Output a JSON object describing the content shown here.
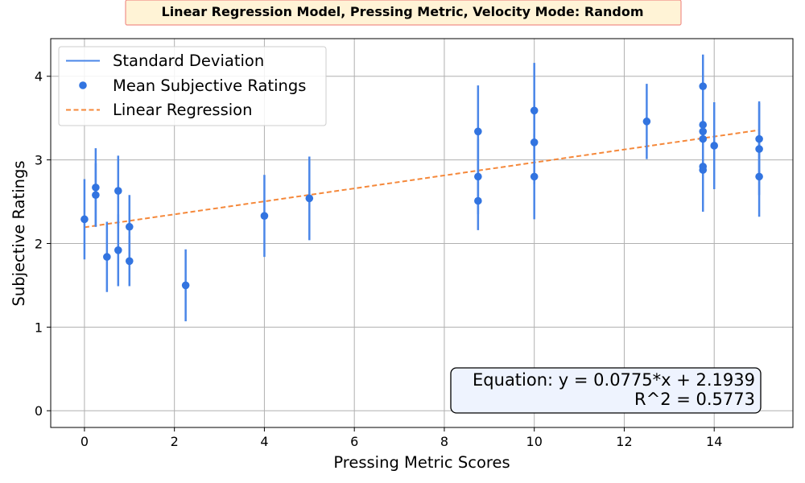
{
  "chart_data": {
    "type": "scatter",
    "title": "Linear Regression Model, Pressing Metric, Velocity Mode: Random",
    "xlabel": "Pressing Metric Scores",
    "ylabel": "Subjective Ratings",
    "xlim": [
      -0.75,
      15.75
    ],
    "ylim": [
      -0.2,
      4.45
    ],
    "xticks": [
      0,
      2,
      4,
      6,
      8,
      10,
      12,
      14
    ],
    "yticks": [
      0,
      1,
      2,
      3,
      4
    ],
    "grid": true,
    "legend_position": "top-left",
    "legend": [
      "Standard Deviation",
      "Mean Subjective Ratings",
      "Linear Regression"
    ],
    "colors": {
      "points": "#3274e0",
      "errorbars": "#4a86e8",
      "regression": "#f5883a",
      "title_bg": "#fff3d6",
      "title_border": "#f0908a",
      "eq_bg": "#eef3fe"
    },
    "series": [
      {
        "name": "Mean Subjective Ratings",
        "points": [
          {
            "x": 0,
            "y": 2.29,
            "sd": 0.48
          },
          {
            "x": 0.25,
            "y": 2.67,
            "sd": 0.47
          },
          {
            "x": 0.25,
            "y": 2.58,
            "sd": 0.38
          },
          {
            "x": 0.5,
            "y": 1.84,
            "sd": 0.42
          },
          {
            "x": 0.75,
            "y": 2.63,
            "sd": 0.42
          },
          {
            "x": 0.75,
            "y": 1.92,
            "sd": 0.43
          },
          {
            "x": 1,
            "y": 2.2,
            "sd": 0.38
          },
          {
            "x": 1,
            "y": 1.79,
            "sd": 0.3
          },
          {
            "x": 2.25,
            "y": 1.5,
            "sd": 0.43
          },
          {
            "x": 4,
            "y": 2.33,
            "sd": 0.49
          },
          {
            "x": 5,
            "y": 2.54,
            "sd": 0.5
          },
          {
            "x": 8.75,
            "y": 3.34,
            "sd": 0.55
          },
          {
            "x": 8.75,
            "y": 2.8,
            "sd": 0.45
          },
          {
            "x": 8.75,
            "y": 2.51,
            "sd": 0.35
          },
          {
            "x": 10,
            "y": 3.59,
            "sd": 0.57
          },
          {
            "x": 10,
            "y": 3.21,
            "sd": 0.5
          },
          {
            "x": 10,
            "y": 2.8,
            "sd": 0.51
          },
          {
            "x": 12.5,
            "y": 3.46,
            "sd": 0.45
          },
          {
            "x": 13.75,
            "y": 3.88,
            "sd": 0.38
          },
          {
            "x": 13.75,
            "y": 3.42,
            "sd": 0.45
          },
          {
            "x": 13.75,
            "y": 3.34,
            "sd": 0.45
          },
          {
            "x": 13.75,
            "y": 3.25,
            "sd": 0.45
          },
          {
            "x": 13.75,
            "y": 2.92,
            "sd": 0.45
          },
          {
            "x": 13.75,
            "y": 2.88,
            "sd": 0.5
          },
          {
            "x": 14,
            "y": 3.17,
            "sd": 0.52
          },
          {
            "x": 15,
            "y": 3.25,
            "sd": 0.45
          },
          {
            "x": 15,
            "y": 3.13,
            "sd": 0.55
          },
          {
            "x": 15,
            "y": 2.8,
            "sd": 0.48
          }
        ]
      }
    ],
    "regression": {
      "slope": 0.0775,
      "intercept": 2.1939,
      "x_range": [
        0,
        15
      ]
    },
    "annotation": {
      "equation": "Equation: y = 0.0775*x + 2.1939",
      "r2": "R^2 = 0.5773",
      "position": "bottom-right"
    }
  }
}
